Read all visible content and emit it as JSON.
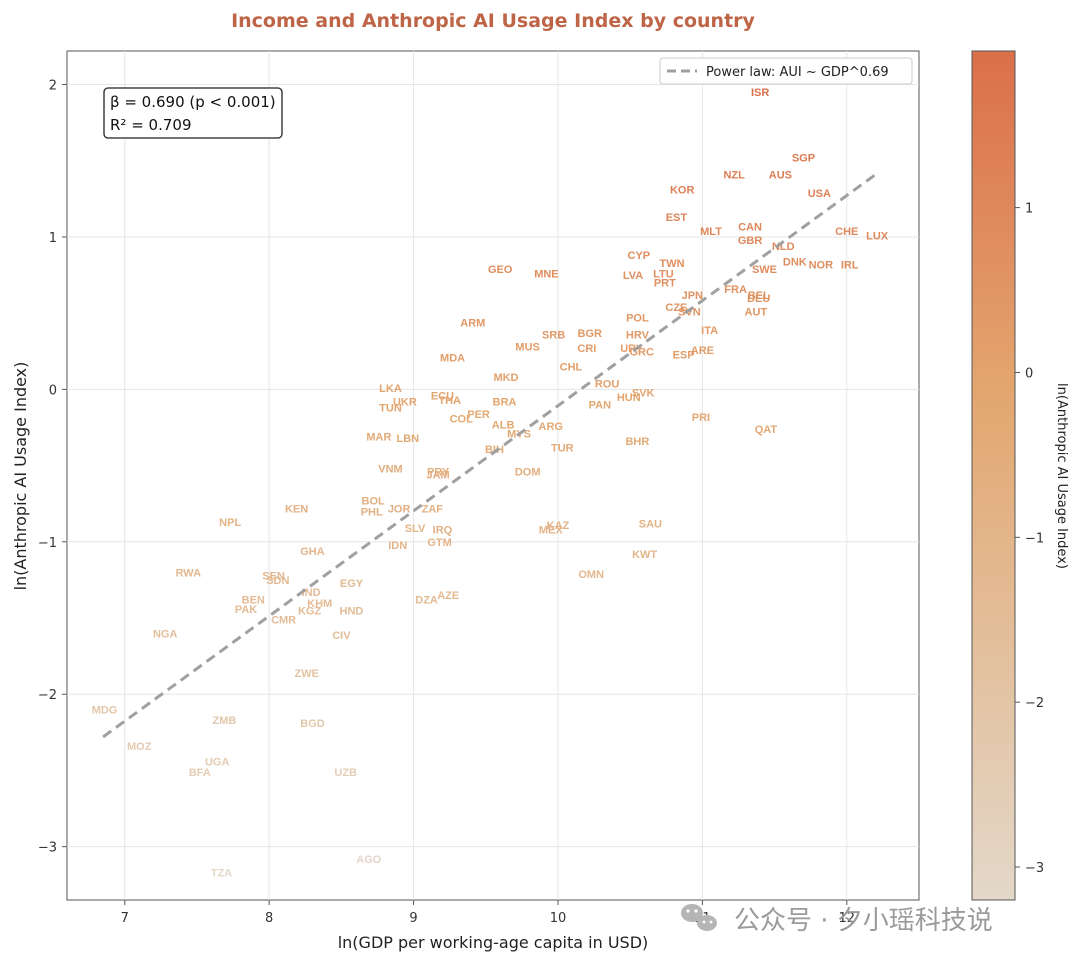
{
  "chart_data": {
    "type": "scatter",
    "title": "Income and Anthropic AI Usage Index by country",
    "xlabel": "ln(GDP per working-age capita in USD)",
    "ylabel": "ln(Anthropic AI Usage Index)",
    "xlim": [
      6.6,
      12.5
    ],
    "ylim": [
      -3.35,
      2.22
    ],
    "xticks": [
      7,
      8,
      9,
      10,
      11,
      12
    ],
    "yticks": [
      -3,
      -2,
      -1,
      0,
      1,
      2
    ],
    "grid": true,
    "legend_position": "top-right",
    "fit_line": {
      "label": "Power law: AUI ~ GDP^0.69",
      "x": [
        6.85,
        12.2
      ],
      "y": [
        -2.28,
        1.41
      ],
      "color": "#a0a0a0"
    },
    "stats": {
      "beta_line": "β = 0.690 (p < 0.001)",
      "r2_line": "R² = 0.709"
    },
    "colorbar": {
      "label": "ln(Anthropic AI Usage Index)",
      "range": [
        -3.2,
        1.95
      ],
      "ticks": [
        -3,
        -2,
        -1,
        0,
        1
      ],
      "low_color": "#e3d8c9",
      "mid_color": "#e3a66f",
      "high_color": "#db6f4a"
    },
    "points": [
      {
        "label": "ISR",
        "x": 11.4,
        "y": 1.95
      },
      {
        "label": "SGP",
        "x": 11.7,
        "y": 1.52
      },
      {
        "label": "NZL",
        "x": 11.22,
        "y": 1.41
      },
      {
        "label": "AUS",
        "x": 11.54,
        "y": 1.41
      },
      {
        "label": "KOR",
        "x": 10.86,
        "y": 1.31
      },
      {
        "label": "USA",
        "x": 11.81,
        "y": 1.29
      },
      {
        "label": "EST",
        "x": 10.82,
        "y": 1.13
      },
      {
        "label": "MLT",
        "x": 11.06,
        "y": 1.04
      },
      {
        "label": "CAN",
        "x": 11.33,
        "y": 1.07
      },
      {
        "label": "CHE",
        "x": 12.0,
        "y": 1.04
      },
      {
        "label": "LUX",
        "x": 12.21,
        "y": 1.01
      },
      {
        "label": "GBR",
        "x": 11.33,
        "y": 0.98
      },
      {
        "label": "NLD",
        "x": 11.56,
        "y": 0.94
      },
      {
        "label": "CYP",
        "x": 10.56,
        "y": 0.88
      },
      {
        "label": "TWN",
        "x": 10.79,
        "y": 0.83
      },
      {
        "label": "DNK",
        "x": 11.64,
        "y": 0.84
      },
      {
        "label": "NOR",
        "x": 11.82,
        "y": 0.82
      },
      {
        "label": "IRL",
        "x": 12.02,
        "y": 0.82
      },
      {
        "label": "SWE",
        "x": 11.43,
        "y": 0.79
      },
      {
        "label": "GEO",
        "x": 9.6,
        "y": 0.79
      },
      {
        "label": "MNE",
        "x": 9.92,
        "y": 0.76
      },
      {
        "label": "LVA",
        "x": 10.52,
        "y": 0.75
      },
      {
        "label": "LTU",
        "x": 10.73,
        "y": 0.76
      },
      {
        "label": "PRT",
        "x": 10.74,
        "y": 0.7
      },
      {
        "label": "FRA",
        "x": 11.23,
        "y": 0.66
      },
      {
        "label": "BEL",
        "x": 11.39,
        "y": 0.62
      },
      {
        "label": "DEU",
        "x": 11.39,
        "y": 0.6
      },
      {
        "label": "JPN",
        "x": 10.93,
        "y": 0.62
      },
      {
        "label": "CZE",
        "x": 10.82,
        "y": 0.54
      },
      {
        "label": "SVN",
        "x": 10.91,
        "y": 0.51
      },
      {
        "label": "AUT",
        "x": 11.37,
        "y": 0.51
      },
      {
        "label": "POL",
        "x": 10.55,
        "y": 0.47
      },
      {
        "label": "ARM",
        "x": 9.41,
        "y": 0.44
      },
      {
        "label": "ITA",
        "x": 11.05,
        "y": 0.39
      },
      {
        "label": "SRB",
        "x": 9.97,
        "y": 0.36
      },
      {
        "label": "BGR",
        "x": 10.22,
        "y": 0.37
      },
      {
        "label": "HRV",
        "x": 10.55,
        "y": 0.36
      },
      {
        "label": "MUS",
        "x": 9.79,
        "y": 0.28
      },
      {
        "label": "CRI",
        "x": 10.2,
        "y": 0.27
      },
      {
        "label": "URY",
        "x": 10.51,
        "y": 0.27
      },
      {
        "label": "GRC",
        "x": 10.58,
        "y": 0.25
      },
      {
        "label": "ARE",
        "x": 11.0,
        "y": 0.26
      },
      {
        "label": "ESP",
        "x": 10.87,
        "y": 0.23
      },
      {
        "label": "MDA",
        "x": 9.27,
        "y": 0.21
      },
      {
        "label": "CHL",
        "x": 10.09,
        "y": 0.15
      },
      {
        "label": "MKD",
        "x": 9.64,
        "y": 0.08
      },
      {
        "label": "ROU",
        "x": 10.34,
        "y": 0.04
      },
      {
        "label": "LKA",
        "x": 8.84,
        "y": 0.01
      },
      {
        "label": "SVK",
        "x": 10.59,
        "y": -0.02
      },
      {
        "label": "ECU",
        "x": 9.2,
        "y": -0.04
      },
      {
        "label": "HUN",
        "x": 10.49,
        "y": -0.05
      },
      {
        "label": "THA",
        "x": 9.25,
        "y": -0.07
      },
      {
        "label": "UKR",
        "x": 8.94,
        "y": -0.08
      },
      {
        "label": "BRA",
        "x": 9.63,
        "y": -0.08
      },
      {
        "label": "PAN",
        "x": 10.29,
        "y": -0.1
      },
      {
        "label": "TUN",
        "x": 8.84,
        "y": -0.12
      },
      {
        "label": "PER",
        "x": 9.45,
        "y": -0.16
      },
      {
        "label": "COL",
        "x": 9.33,
        "y": -0.19
      },
      {
        "label": "PRI",
        "x": 10.99,
        "y": -0.18
      },
      {
        "label": "ALB",
        "x": 9.62,
        "y": -0.23
      },
      {
        "label": "ARG",
        "x": 9.95,
        "y": -0.24
      },
      {
        "label": "QAT",
        "x": 11.44,
        "y": -0.26
      },
      {
        "label": "MYS",
        "x": 9.73,
        "y": -0.29
      },
      {
        "label": "MAR",
        "x": 8.76,
        "y": -0.31
      },
      {
        "label": "LBN",
        "x": 8.96,
        "y": -0.32
      },
      {
        "label": "BHR",
        "x": 10.55,
        "y": -0.34
      },
      {
        "label": "TUR",
        "x": 10.03,
        "y": -0.38
      },
      {
        "label": "BIH",
        "x": 9.56,
        "y": -0.39
      },
      {
        "label": "VNM",
        "x": 8.84,
        "y": -0.52
      },
      {
        "label": "DOM",
        "x": 9.79,
        "y": -0.54
      },
      {
        "label": "PRY",
        "x": 9.17,
        "y": -0.54
      },
      {
        "label": "JAM",
        "x": 9.17,
        "y": -0.56
      },
      {
        "label": "BOL",
        "x": 8.72,
        "y": -0.73
      },
      {
        "label": "KEN",
        "x": 8.19,
        "y": -0.78
      },
      {
        "label": "PHL",
        "x": 8.71,
        "y": -0.8
      },
      {
        "label": "JOR",
        "x": 8.9,
        "y": -0.78
      },
      {
        "label": "ZAF",
        "x": 9.13,
        "y": -0.78
      },
      {
        "label": "NPL",
        "x": 7.73,
        "y": -0.87
      },
      {
        "label": "SAU",
        "x": 10.64,
        "y": -0.88
      },
      {
        "label": "KAZ",
        "x": 10.0,
        "y": -0.89
      },
      {
        "label": "MEX",
        "x": 9.95,
        "y": -0.92
      },
      {
        "label": "SLV",
        "x": 9.01,
        "y": -0.91
      },
      {
        "label": "IRQ",
        "x": 9.2,
        "y": -0.92
      },
      {
        "label": "GTM",
        "x": 9.18,
        "y": -1.0
      },
      {
        "label": "IDN",
        "x": 8.89,
        "y": -1.02
      },
      {
        "label": "GHA",
        "x": 8.3,
        "y": -1.06
      },
      {
        "label": "KWT",
        "x": 10.6,
        "y": -1.08
      },
      {
        "label": "RWA",
        "x": 7.44,
        "y": -1.2
      },
      {
        "label": "SEN",
        "x": 8.03,
        "y": -1.22
      },
      {
        "label": "OMN",
        "x": 10.23,
        "y": -1.21
      },
      {
        "label": "SDN",
        "x": 8.06,
        "y": -1.25
      },
      {
        "label": "EGY",
        "x": 8.57,
        "y": -1.27
      },
      {
        "label": "IND",
        "x": 8.29,
        "y": -1.33
      },
      {
        "label": "AZE",
        "x": 9.24,
        "y": -1.35
      },
      {
        "label": "DZA",
        "x": 9.09,
        "y": -1.38
      },
      {
        "label": "BEN",
        "x": 7.89,
        "y": -1.38
      },
      {
        "label": "KHM",
        "x": 8.35,
        "y": -1.4
      },
      {
        "label": "PAK",
        "x": 7.84,
        "y": -1.44
      },
      {
        "label": "KGZ",
        "x": 8.28,
        "y": -1.45
      },
      {
        "label": "HND",
        "x": 8.57,
        "y": -1.45
      },
      {
        "label": "CMR",
        "x": 8.1,
        "y": -1.51
      },
      {
        "label": "NGA",
        "x": 7.28,
        "y": -1.6
      },
      {
        "label": "CIV",
        "x": 8.5,
        "y": -1.61
      },
      {
        "label": "ZWE",
        "x": 8.26,
        "y": -1.86
      },
      {
        "label": "MDG",
        "x": 6.86,
        "y": -2.1
      },
      {
        "label": "ZMB",
        "x": 7.69,
        "y": -2.17
      },
      {
        "label": "BGD",
        "x": 8.3,
        "y": -2.19
      },
      {
        "label": "MOZ",
        "x": 7.1,
        "y": -2.34
      },
      {
        "label": "UGA",
        "x": 7.64,
        "y": -2.44
      },
      {
        "label": "BFA",
        "x": 7.52,
        "y": -2.51
      },
      {
        "label": "UZB",
        "x": 8.53,
        "y": -2.51
      },
      {
        "label": "AGO",
        "x": 8.69,
        "y": -3.08
      },
      {
        "label": "TZA",
        "x": 7.67,
        "y": -3.17
      }
    ]
  },
  "watermark": {
    "text": "公众号 · 夕小瑶科技说"
  }
}
